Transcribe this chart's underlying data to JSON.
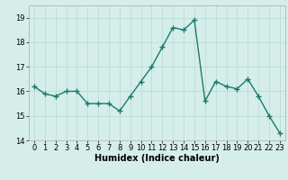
{
  "x": [
    0,
    1,
    2,
    3,
    4,
    5,
    6,
    7,
    8,
    9,
    10,
    11,
    12,
    13,
    14,
    15,
    16,
    17,
    18,
    19,
    20,
    21,
    22,
    23
  ],
  "y": [
    16.2,
    15.9,
    15.8,
    16.0,
    16.0,
    15.5,
    15.5,
    15.5,
    15.2,
    15.8,
    16.4,
    17.0,
    17.8,
    18.6,
    18.5,
    18.9,
    15.6,
    16.4,
    16.2,
    16.1,
    16.5,
    15.8,
    15.0,
    14.3
  ],
  "line_color": "#1a7a6e",
  "marker": "+",
  "marker_size": 4,
  "line_width": 1.0,
  "xlabel": "Humidex (Indice chaleur)",
  "xlim": [
    -0.5,
    23.5
  ],
  "ylim": [
    14,
    19.5
  ],
  "yticks": [
    14,
    15,
    16,
    17,
    18,
    19
  ],
  "xticks": [
    0,
    1,
    2,
    3,
    4,
    5,
    6,
    7,
    8,
    9,
    10,
    11,
    12,
    13,
    14,
    15,
    16,
    17,
    18,
    19,
    20,
    21,
    22,
    23
  ],
  "bg_color": "#d5eee9",
  "grid_color": "#b8d8d2",
  "xlabel_fontsize": 7,
  "tick_fontsize": 6
}
